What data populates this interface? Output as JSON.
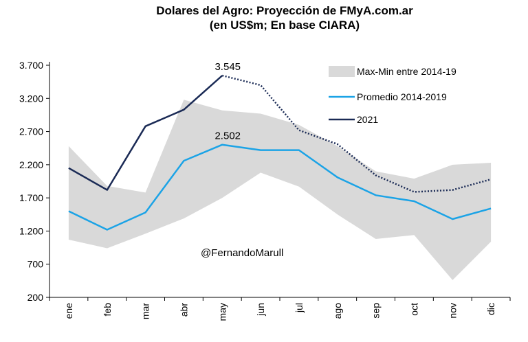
{
  "chart_data": {
    "type": "line",
    "title": "Dolares del Agro: Proyección de FMyA.com.ar",
    "subtitle": "(en US$m;  En base  CIARA)",
    "categories": [
      "ene",
      "feb",
      "mar",
      "abr",
      "may",
      "jun",
      "jul",
      "ago",
      "sep",
      "oct",
      "nov",
      "dic"
    ],
    "ylim": [
      200,
      3700
    ],
    "yticks": [
      "3.700",
      "3.200",
      "2.700",
      "2.200",
      "1.700",
      "1.200",
      "700",
      "200"
    ],
    "ytick_values": [
      3700,
      3200,
      2700,
      2200,
      1700,
      1200,
      700,
      200
    ],
    "legend_position": "top-right",
    "grid": false,
    "band": {
      "name": "Max-Min entre 2014-19",
      "color": "#d9d9d9",
      "max": [
        2480,
        1880,
        1780,
        3180,
        3020,
        2970,
        2800,
        2480,
        2100,
        1990,
        2200,
        2230
      ],
      "min": [
        1070,
        940,
        1160,
        1390,
        1700,
        2080,
        1870,
        1450,
        1080,
        1140,
        460,
        1040
      ]
    },
    "series": [
      {
        "name": "Promedio 2014-2019",
        "color": "#1ba3e6",
        "values": [
          1500,
          1220,
          1480,
          2260,
          2502,
          2420,
          2420,
          2010,
          1740,
          1650,
          1380,
          1540
        ]
      },
      {
        "name": "2021",
        "color": "#1a2a55",
        "values": [
          2150,
          1820,
          2780,
          3030,
          3545,
          null,
          null,
          null,
          null,
          null,
          null,
          null
        ],
        "projection": [
          null,
          null,
          null,
          null,
          3545,
          3400,
          2720,
          2510,
          2040,
          1790,
          1820,
          1980
        ]
      }
    ],
    "annotations": [
      {
        "text": "3.545",
        "category": "may",
        "value": 3545
      },
      {
        "text": "2.502",
        "category": "may",
        "value": 2502
      }
    ],
    "credit": "@FernandoMarull"
  }
}
